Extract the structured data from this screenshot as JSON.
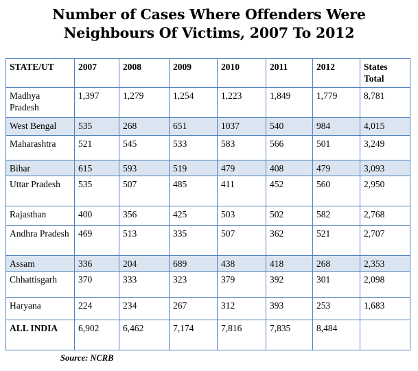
{
  "title": {
    "line1": "Number of Cases Where Offenders Were",
    "line2": "Neighbours Of Victims, 2007 To 2012"
  },
  "table": {
    "headers": [
      "STATE/UT",
      "2007",
      "2008",
      "2009",
      "2010",
      "2011",
      "2012",
      "States Total"
    ],
    "rows": [
      {
        "state": "Madhya Pradesh",
        "v2007": "1,397",
        "v2008": "1,279",
        "v2009": "1,254",
        "v2010": "1,223",
        "v2011": "1,849",
        "v2012": "1,779",
        "total": "8,781"
      },
      {
        "state": "West Bengal",
        "v2007": "535",
        "v2008": "268",
        "v2009": "651",
        "v2010": "1037",
        "v2011": "540",
        "v2012": "984",
        "total": "4,015"
      },
      {
        "state": "Maharashtra",
        "v2007": "521",
        "v2008": "545",
        "v2009": "533",
        "v2010": "583",
        "v2011": "566",
        "v2012": "501",
        "total": "3,249"
      },
      {
        "state": "Bihar",
        "v2007": "615",
        "v2008": "593",
        "v2009": "519",
        "v2010": "479",
        "v2011": "408",
        "v2012": "479",
        "total": "3,093"
      },
      {
        "state": "Uttar Pradesh",
        "v2007": "535",
        "v2008": "507",
        "v2009": "485",
        "v2010": "411",
        "v2011": "452",
        "v2012": "560",
        "total": "2,950"
      },
      {
        "state": "Rajasthan",
        "v2007": "400",
        "v2008": "356",
        "v2009": "425",
        "v2010": "503",
        "v2011": "502",
        "v2012": "582",
        "total": "2,768"
      },
      {
        "state": "Andhra Pradesh",
        "v2007": "469",
        "v2008": "513",
        "v2009": "335",
        "v2010": "507",
        "v2011": "362",
        "v2012": "521",
        "total": "2,707"
      },
      {
        "state": "Assam",
        "v2007": "336",
        "v2008": "204",
        "v2009": "689",
        "v2010": "438",
        "v2011": "418",
        "v2012": "268",
        "total": "2,353"
      },
      {
        "state": "Chhattisgarh",
        "v2007": "370",
        "v2008": "333",
        "v2009": "323",
        "v2010": "379",
        "v2011": "392",
        "v2012": "301",
        "total": "2,098"
      },
      {
        "state": "Haryana",
        "v2007": "224",
        "v2008": "234",
        "v2009": "267",
        "v2010": "312",
        "v2011": "393",
        "v2012": "253",
        "total": "1,683"
      }
    ],
    "all_india": {
      "label": "ALL INDIA",
      "v2007": "6,902",
      "v2008": "6,462",
      "v2009": "7,174",
      "v2010": "7,816",
      "v2011": "7,835",
      "v2012": "8,484",
      "total": ""
    }
  },
  "source": "Source: NCRB",
  "colors": {
    "border": "#4f81bd",
    "shaded_row": "#dbe5f1"
  }
}
